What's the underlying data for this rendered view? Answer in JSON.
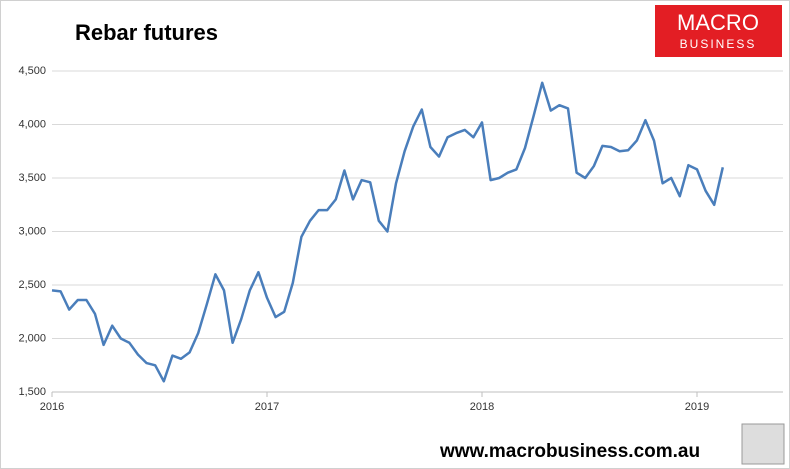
{
  "chart_data": {
    "type": "line",
    "title": "Rebar futures",
    "brand": [
      "MACRO",
      "BUSINESS"
    ],
    "footer": "www.macrobusiness.com.au",
    "x": [
      2016,
      2016.04,
      2016.08,
      2016.12,
      2016.16,
      2016.2,
      2016.24,
      2016.28,
      2016.32,
      2016.36,
      2016.4,
      2016.44,
      2016.48,
      2016.52,
      2016.56,
      2016.6,
      2016.64,
      2016.68,
      2016.72,
      2016.76,
      2016.8,
      2016.84,
      2016.88,
      2016.92,
      2016.96,
      2017,
      2017.04,
      2017.08,
      2017.12,
      2017.16,
      2017.2,
      2017.24,
      2017.28,
      2017.32,
      2017.36,
      2017.4,
      2017.44,
      2017.48,
      2017.52,
      2017.56,
      2017.6,
      2017.64,
      2017.68,
      2017.72,
      2017.76,
      2017.8,
      2017.84,
      2017.88,
      2017.92,
      2017.96,
      2018,
      2018.04,
      2018.08,
      2018.12,
      2018.16,
      2018.2,
      2018.24,
      2018.28,
      2018.32,
      2018.36,
      2018.4,
      2018.44,
      2018.48,
      2018.52,
      2018.56,
      2018.6,
      2018.64,
      2018.68,
      2018.72,
      2018.76,
      2018.8,
      2018.84,
      2018.88,
      2018.92,
      2018.96,
      2019,
      2019.04,
      2019.08,
      2019.12
    ],
    "series": [
      {
        "name": "Rebar futures",
        "color": "#4a7ebb",
        "values": [
          2450,
          2440,
          2270,
          2360,
          2360,
          2230,
          1940,
          2120,
          2000,
          1960,
          1850,
          1770,
          1750,
          1600,
          1840,
          1810,
          1870,
          2050,
          2320,
          2600,
          2450,
          1960,
          2180,
          2450,
          2620,
          2380,
          2200,
          2250,
          2520,
          2950,
          3100,
          3200,
          3200,
          3300,
          3570,
          3300,
          3480,
          3460,
          3100,
          3000,
          3450,
          3750,
          3980,
          4140,
          3790,
          3700,
          3880,
          3920,
          3950,
          3880,
          4020,
          3480,
          3500,
          3550,
          3580,
          3780,
          4080,
          4390,
          4130,
          4180,
          4150,
          3550,
          3500,
          3610,
          3800,
          3790,
          3750,
          3760,
          3850,
          4040,
          3850,
          3450,
          3500,
          3330,
          3620,
          3580,
          3380,
          3250,
          3600
        ]
      }
    ],
    "xlim": [
      2016,
      2019.4
    ],
    "xticks": [
      2016,
      2017,
      2018,
      2019
    ],
    "ylim": [
      1500,
      4500
    ],
    "yticks": [
      {
        "value": 1500,
        "label": "1,500"
      },
      {
        "value": 2000,
        "label": "2,000"
      },
      {
        "value": 2500,
        "label": "2,500"
      },
      {
        "value": 3000,
        "label": "3,000"
      },
      {
        "value": 3500,
        "label": "3,500"
      },
      {
        "value": 4000,
        "label": "4,000"
      },
      {
        "value": 4500,
        "label": "4,500"
      }
    ],
    "grid": true
  }
}
